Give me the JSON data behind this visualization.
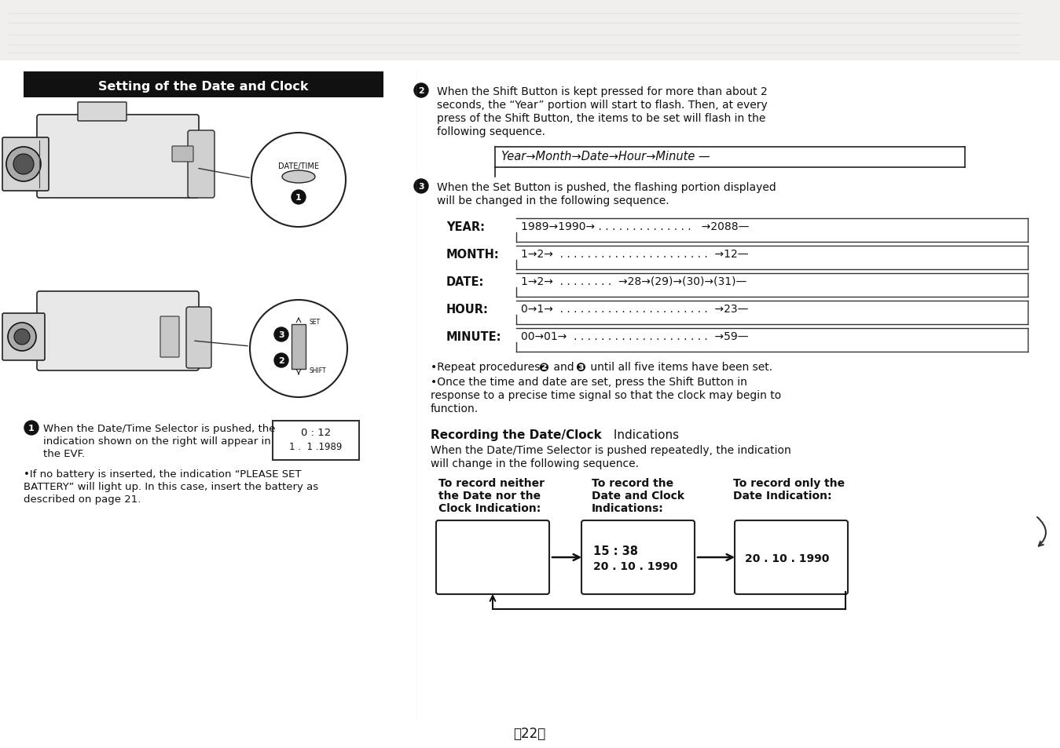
{
  "bg_color": "#ffffff",
  "page_bg": "#f8f8f6",
  "page_number": "〲22〳",
  "left_header_text": "Setting of the Date and Clock",
  "left_header_bg": "#111111",
  "left_header_color": "#ffffff",
  "evf_box_lines": [
    "0 : 12",
    "1 .  1 .1989"
  ],
  "section2_text_lines": [
    "When the Shift Button is kept pressed for more than about 2",
    "seconds, the “Year” portion will start to flash. Then, at every",
    "press of the Shift Button, the items to be set will flash in the",
    "following sequence."
  ],
  "sequence_label": "Year→Month→Date→Hour→Minute —",
  "section3_text_lines": [
    "When the Set Button is pushed, the flashing portion displayed",
    "will be changed in the following sequence."
  ],
  "rows": [
    {
      "label": "YEAR:",
      "seq": "1989→1990→ . . . . . . . . . . . . . .   →2088—"
    },
    {
      "label": "MONTH:",
      "seq": "1→2→  . . . . . . . . . . . . . . . . . . . . . .  →12—"
    },
    {
      "label": "DATE:",
      "seq": "1→2→  . . . . . . . .  →28→(29)→(30)→(31)—"
    },
    {
      "label": "HOUR:",
      "seq": "0→1→  . . . . . . . . . . . . . . . . . . . . . .  →23—"
    },
    {
      "label": "MINUTE:",
      "seq": "00→01→  . . . . . . . . . . . . . . . . . . . .  →59—"
    }
  ],
  "note1_parts": [
    "•Repeat procedures ",
    "❷",
    " and ",
    "❸",
    " until all five items have been set."
  ],
  "note2_lines": [
    "•Once the time and date are set, press the Shift Button in",
    "response to a precise time signal so that the clock may begin to",
    "function."
  ],
  "recording_bold": "Recording the Date/Clock",
  "recording_normal": " Indications",
  "recording_desc_lines": [
    "When the Date/Time Selector is pushed repeatedly, the indication",
    "will change in the following sequence."
  ],
  "col1_lines": [
    "To record neither",
    "the Date nor the",
    "Clock Indication:"
  ],
  "col2_lines": [
    "To record the",
    "Date and Clock",
    "Indications:"
  ],
  "col3_lines": [
    "To record only the",
    "Date Indication:"
  ],
  "box2_line1": "15 : 38",
  "box2_line2": "20 . 10 . 1990",
  "box3_line1": "20 . 10 . 1990"
}
